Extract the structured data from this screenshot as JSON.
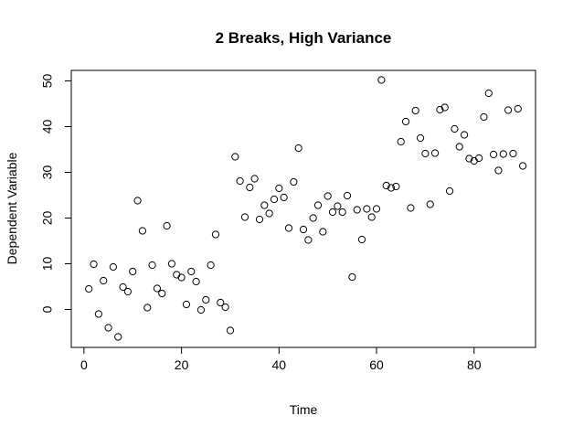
{
  "chart_data": {
    "type": "scatter",
    "title": "2 Breaks, High Variance",
    "xlabel": "Time",
    "ylabel": "Dependent Variable",
    "xlim": [
      -2.6,
      92.6
    ],
    "ylim": [
      -8.3,
      52.3
    ],
    "xticks": [
      0,
      20,
      40,
      60,
      80
    ],
    "yticks": [
      0,
      10,
      20,
      30,
      40,
      50
    ],
    "xtick_labels": [
      "0",
      "20",
      "40",
      "60",
      "80"
    ],
    "ytick_labels": [
      "0",
      "10",
      "20",
      "30",
      "40",
      "50"
    ],
    "grid": false,
    "legend": "none",
    "marker": "open-circle",
    "colors": {
      "stroke": "#000000",
      "background": "#ffffff"
    },
    "series": [
      {
        "x": [
          1,
          2,
          3,
          4,
          5,
          6,
          7,
          8,
          9,
          10,
          11,
          12,
          13,
          14,
          15,
          16,
          17,
          18,
          19,
          20,
          21,
          22,
          23,
          24,
          25,
          26,
          27,
          28,
          29,
          30,
          31,
          32,
          33,
          34,
          35,
          36,
          37,
          38,
          39,
          40,
          41,
          42,
          43,
          44,
          45,
          46,
          47,
          48,
          49,
          50,
          51,
          52,
          53,
          54,
          55,
          56,
          57,
          58,
          59,
          60,
          61,
          62,
          63,
          64,
          65,
          66,
          67,
          68,
          69,
          70,
          71,
          72,
          73,
          74,
          75,
          76,
          77,
          78,
          79,
          80,
          81,
          82,
          83,
          84,
          85,
          86,
          87,
          88,
          89,
          90
        ],
        "y": [
          4.5,
          9.9,
          -1.0,
          6.3,
          -4.0,
          9.3,
          -6.0,
          4.9,
          3.9,
          8.3,
          23.8,
          17.2,
          0.4,
          9.7,
          4.6,
          3.5,
          18.3,
          10.0,
          7.6,
          7.0,
          1.1,
          8.3,
          6.1,
          -0.1,
          2.1,
          9.7,
          16.4,
          1.5,
          0.5,
          -4.6,
          33.4,
          28.1,
          20.2,
          26.7,
          28.6,
          19.7,
          22.8,
          21.0,
          24.1,
          26.5,
          24.5,
          17.8,
          27.9,
          35.3,
          17.5,
          15.2,
          20.0,
          22.8,
          17.0,
          24.8,
          21.3,
          22.6,
          21.3,
          24.9,
          7.1,
          21.8,
          15.3,
          22.0,
          20.2,
          22.0,
          50.2,
          27.1,
          26.6,
          26.9,
          36.7,
          41.1,
          22.2,
          43.5,
          37.5,
          34.1,
          23.0,
          34.2,
          43.7,
          44.2,
          25.9,
          39.5,
          35.6,
          38.2,
          33.0,
          32.5,
          33.1,
          42.1,
          47.3,
          33.9,
          30.4,
          34.0,
          43.6,
          34.1,
          43.9,
          31.4
        ]
      }
    ]
  }
}
